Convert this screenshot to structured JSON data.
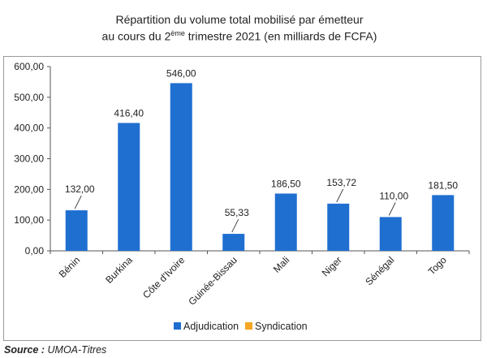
{
  "chart_data": {
    "type": "bar",
    "title_line1": "Répartition du volume total mobilisé par émetteur",
    "title_line2_pre": "au cours du 2",
    "title_line2_sup": "ème",
    "title_line2_post": " trimestre 2021 (en milliards de FCFA)",
    "categories": [
      "Bénin",
      "Burkina",
      "Côte d'Ivoire",
      "Guinée-Bissau",
      "Mali",
      "Niger",
      "Sénégal",
      "Togo"
    ],
    "series": [
      {
        "name": "Adjudication",
        "color": "#1f6fd1",
        "values": [
          132.0,
          416.4,
          546.0,
          55.33,
          186.5,
          153.72,
          110.0,
          181.5
        ]
      },
      {
        "name": "Syndication",
        "color": "#f5a623",
        "values": [
          0,
          0,
          0,
          0,
          0,
          0,
          0,
          0
        ]
      }
    ],
    "data_labels": [
      "132,00",
      "416,40",
      "546,00",
      "55,33",
      "186,50",
      "153,72",
      "110,00",
      "181,50"
    ],
    "ylim": [
      0,
      600
    ],
    "yticks": [
      0,
      100,
      200,
      300,
      400,
      500,
      600
    ],
    "ytick_labels": [
      "0,00",
      "100,00",
      "200,00",
      "300,00",
      "400,00",
      "500,00",
      "600,00"
    ],
    "legend_position": "bottom",
    "grid": false
  },
  "source": {
    "label": "Source :",
    "value": "UMOA-Titres"
  }
}
